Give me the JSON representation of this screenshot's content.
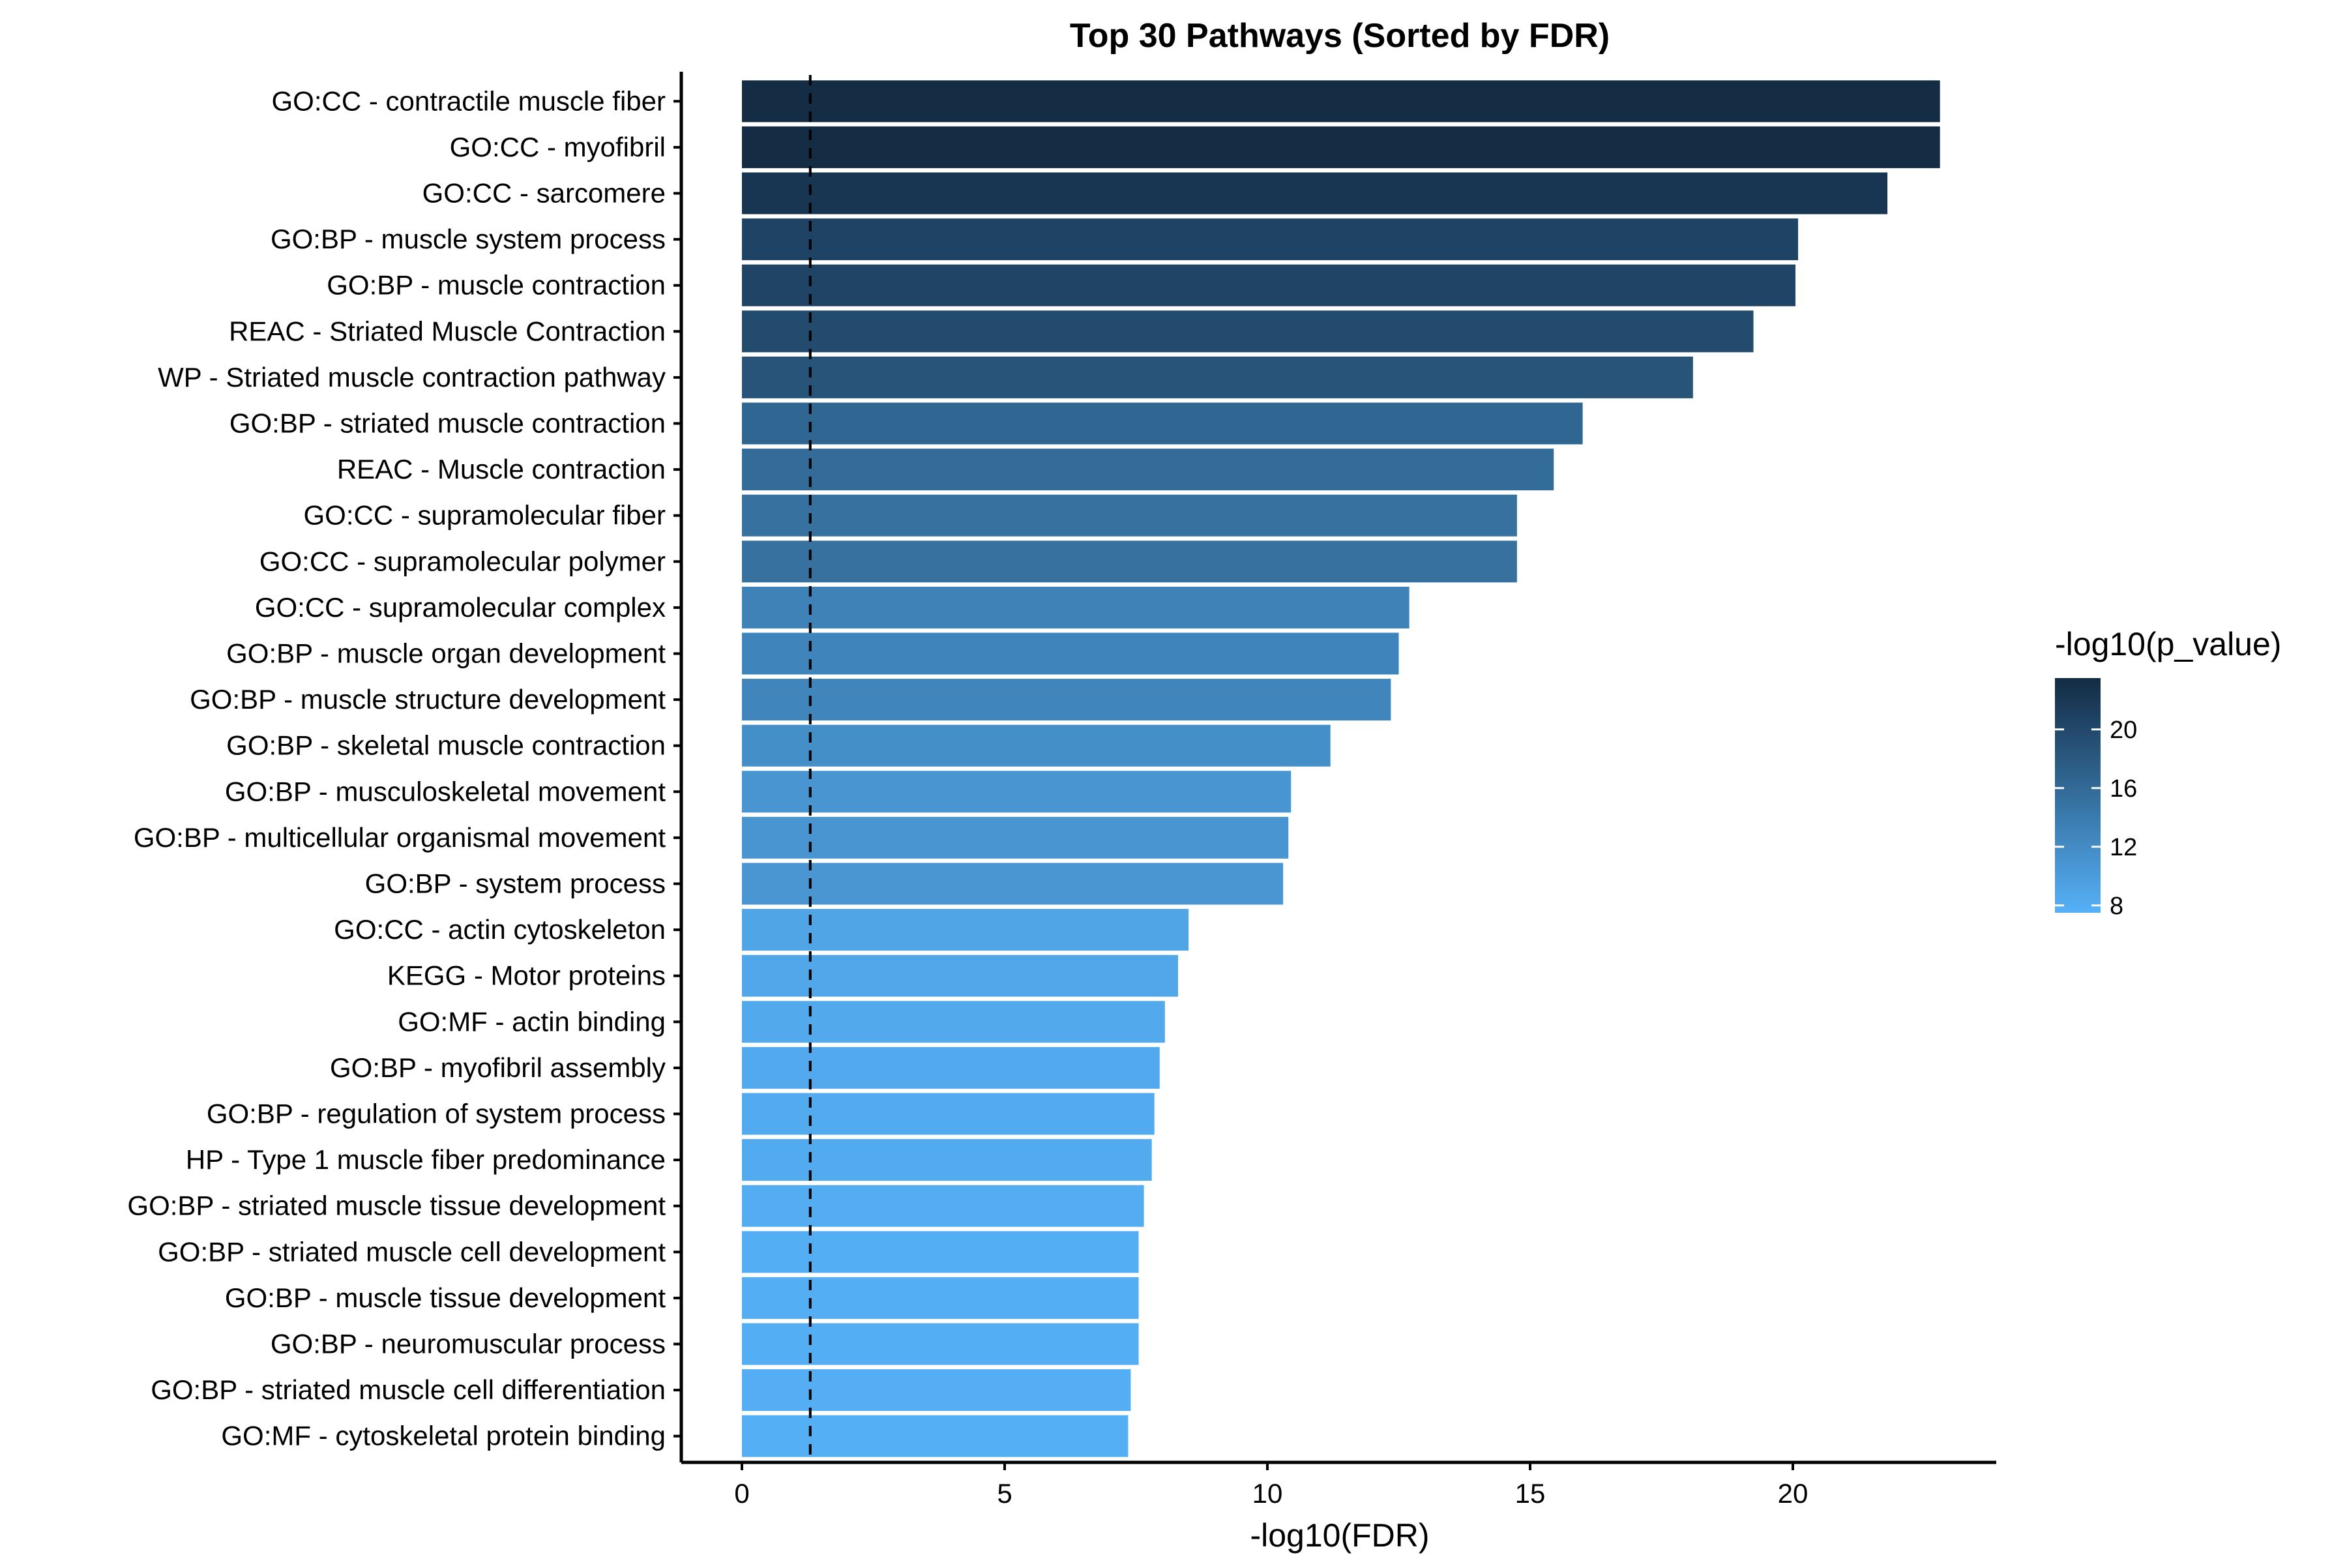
{
  "chart_data": {
    "type": "bar",
    "orientation": "horizontal",
    "title": "Top 30 Pathways (Sorted by FDR)",
    "xlabel": "-log10(FDR)",
    "ylabel": "",
    "xlim": [
      0,
      23.8
    ],
    "x_ticks": [
      0,
      5,
      10,
      15,
      20
    ],
    "grid": false,
    "reference_line": {
      "x": 1.3,
      "style": "dashed"
    },
    "categories": [
      "GO:CC - contractile muscle fiber",
      "GO:CC - myofibril",
      "GO:CC - sarcomere",
      "GO:BP - muscle system process",
      "GO:BP - muscle contraction",
      "REAC - Striated Muscle Contraction",
      "WP - Striated muscle contraction pathway",
      "GO:BP - striated muscle contraction",
      "REAC - Muscle contraction",
      "GO:CC - supramolecular fiber",
      "GO:CC - supramolecular polymer",
      "GO:CC - supramolecular complex",
      "GO:BP - muscle organ development",
      "GO:BP - muscle structure development",
      "GO:BP - skeletal muscle contraction",
      "GO:BP - musculoskeletal movement",
      "GO:BP - multicellular organismal movement",
      "GO:BP - system process",
      "GO:CC - actin cytoskeleton",
      "KEGG - Motor proteins",
      "GO:MF - actin binding",
      "GO:BP - myofibril assembly",
      "GO:BP - regulation of system process",
      "HP - Type 1 muscle fiber predominance",
      "GO:BP - striated muscle tissue development",
      "GO:BP - striated muscle cell development",
      "GO:BP - muscle tissue development",
      "GO:BP - neuromuscular process",
      "GO:BP - striated muscle cell differentiation",
      "GO:MF - cytoskeletal protein binding"
    ],
    "values": [
      22.8,
      22.8,
      21.8,
      20.1,
      20.05,
      19.25,
      18.1,
      16.0,
      15.45,
      14.75,
      14.75,
      12.7,
      12.5,
      12.35,
      11.2,
      10.45,
      10.4,
      10.3,
      8.5,
      8.3,
      8.05,
      7.95,
      7.85,
      7.8,
      7.65,
      7.55,
      7.55,
      7.55,
      7.4,
      7.35
    ],
    "color_values": [
      23.3,
      23.3,
      22.3,
      20.6,
      20.5,
      19.7,
      18.6,
      16.5,
      15.9,
      15.2,
      15.2,
      13.1,
      12.9,
      12.8,
      11.6,
      10.9,
      10.8,
      10.7,
      8.9,
      8.7,
      8.5,
      8.4,
      8.2,
      8.2,
      8.0,
      7.9,
      7.9,
      7.9,
      7.8,
      7.7
    ],
    "legend": {
      "title": "-log10(p_value)",
      "position": "right",
      "ticks": [
        8,
        12,
        16,
        20
      ],
      "range": [
        7.5,
        23.5
      ],
      "color_low": "#56B1F7",
      "color_high": "#132B43"
    }
  }
}
